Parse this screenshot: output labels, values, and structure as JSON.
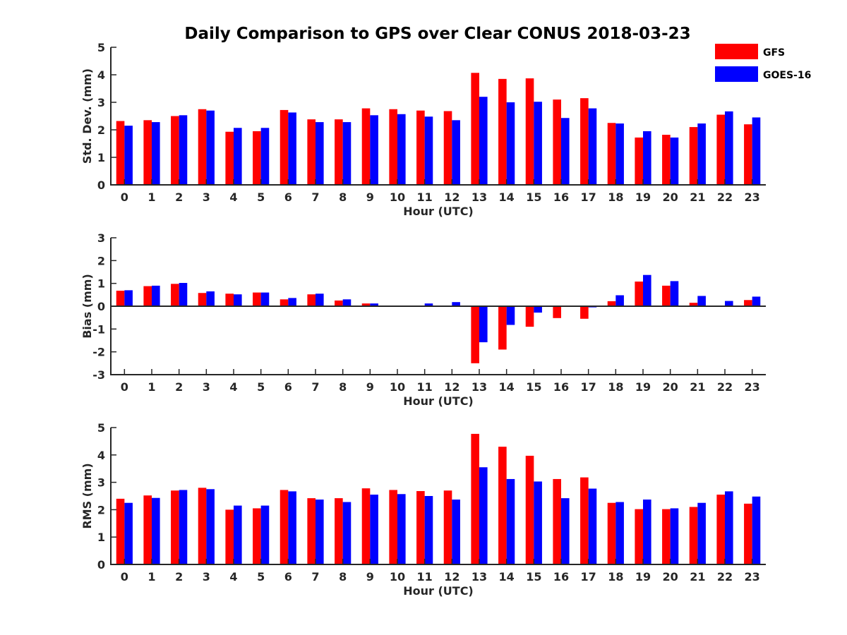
{
  "figure": {
    "title": "Daily Comparison to GPS over Clear CONUS 2018-03-23"
  },
  "legend": [
    {
      "name": "GFS",
      "color": "#ff0000"
    },
    {
      "name": "GOES-16",
      "color": "#0000ff"
    }
  ],
  "chart_data": [
    {
      "type": "bar",
      "title": "Daily Comparison to GPS over Clear CONUS 2018-03-23",
      "xlabel": "Hour (UTC)",
      "ylabel": "Std. Dev. (mm)",
      "ylim": [
        0,
        5
      ],
      "yticks": [
        0,
        1,
        2,
        3,
        4,
        5
      ],
      "categories": [
        "0",
        "1",
        "2",
        "3",
        "4",
        "5",
        "6",
        "7",
        "8",
        "9",
        "10",
        "11",
        "12",
        "13",
        "14",
        "15",
        "16",
        "17",
        "18",
        "19",
        "20",
        "21",
        "22",
        "23"
      ],
      "series": [
        {
          "name": "GFS",
          "color": "#ff0000",
          "values": [
            2.32,
            2.35,
            2.5,
            2.75,
            1.93,
            1.95,
            2.72,
            2.38,
            2.38,
            2.78,
            2.75,
            2.7,
            2.68,
            4.07,
            3.85,
            3.87,
            3.1,
            3.15,
            2.25,
            1.72,
            1.82,
            2.1,
            2.55,
            2.2
          ]
        },
        {
          "name": "GOES-16",
          "color": "#0000ff",
          "values": [
            2.15,
            2.28,
            2.53,
            2.7,
            2.07,
            2.07,
            2.63,
            2.28,
            2.28,
            2.53,
            2.57,
            2.48,
            2.35,
            3.2,
            3.0,
            3.02,
            2.43,
            2.78,
            2.23,
            1.95,
            1.72,
            2.23,
            2.67,
            2.45
          ]
        }
      ]
    },
    {
      "type": "bar",
      "xlabel": "Hour (UTC)",
      "ylabel": "Bias (mm)",
      "ylim": [
        -3,
        3
      ],
      "yticks": [
        -3,
        -2,
        -1,
        0,
        1,
        2,
        3
      ],
      "categories": [
        "0",
        "1",
        "2",
        "3",
        "4",
        "5",
        "6",
        "7",
        "8",
        "9",
        "10",
        "11",
        "12",
        "13",
        "14",
        "15",
        "16",
        "17",
        "18",
        "19",
        "20",
        "21",
        "22",
        "23"
      ],
      "series": [
        {
          "name": "GFS",
          "color": "#ff0000",
          "values": [
            0.68,
            0.88,
            0.98,
            0.58,
            0.55,
            0.6,
            0.3,
            0.52,
            0.25,
            0.12,
            -0.03,
            0.0,
            0.02,
            -2.5,
            -1.9,
            -0.9,
            -0.52,
            -0.55,
            0.22,
            1.08,
            0.9,
            0.15,
            0.02,
            0.27
          ]
        },
        {
          "name": "GOES-16",
          "color": "#0000ff",
          "values": [
            0.7,
            0.9,
            1.02,
            0.65,
            0.52,
            0.6,
            0.36,
            0.55,
            0.3,
            0.12,
            0.02,
            0.12,
            0.18,
            -1.58,
            -0.82,
            -0.28,
            0.0,
            -0.05,
            0.48,
            1.37,
            1.1,
            0.45,
            0.23,
            0.42
          ]
        }
      ]
    },
    {
      "type": "bar",
      "xlabel": "Hour (UTC)",
      "ylabel": "RMS (mm)",
      "ylim": [
        0,
        5
      ],
      "yticks": [
        0,
        1,
        2,
        3,
        4,
        5
      ],
      "categories": [
        "0",
        "1",
        "2",
        "3",
        "4",
        "5",
        "6",
        "7",
        "8",
        "9",
        "10",
        "11",
        "12",
        "13",
        "14",
        "15",
        "16",
        "17",
        "18",
        "19",
        "20",
        "21",
        "22",
        "23"
      ],
      "series": [
        {
          "name": "GFS",
          "color": "#ff0000",
          "values": [
            2.4,
            2.52,
            2.7,
            2.8,
            2.0,
            2.05,
            2.72,
            2.42,
            2.42,
            2.78,
            2.72,
            2.68,
            2.7,
            4.77,
            4.3,
            3.97,
            3.12,
            3.18,
            2.25,
            2.02,
            2.02,
            2.1,
            2.55,
            2.22
          ]
        },
        {
          "name": "GOES-16",
          "color": "#0000ff",
          "values": [
            2.25,
            2.43,
            2.72,
            2.75,
            2.15,
            2.15,
            2.67,
            2.37,
            2.28,
            2.55,
            2.57,
            2.5,
            2.37,
            3.55,
            3.12,
            3.03,
            2.42,
            2.77,
            2.28,
            2.37,
            2.05,
            2.25,
            2.67,
            2.48
          ]
        }
      ]
    }
  ]
}
